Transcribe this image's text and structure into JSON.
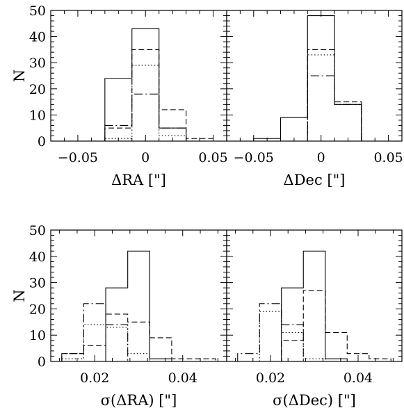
{
  "chart_data": [
    {
      "id": "top-left",
      "type": "histogram",
      "xlabel": "ΔRA [\"]",
      "ylabel": "N",
      "xlim": [
        -0.07,
        0.06
      ],
      "ylim": [
        0,
        50
      ],
      "xticks": [
        -0.05,
        0,
        0.05
      ],
      "xticklabels": [
        "−0.05",
        "0",
        "0.05"
      ],
      "yticks": [
        0,
        10,
        20,
        30,
        40,
        50
      ],
      "yticklabels": [
        "0",
        "10",
        "20",
        "30",
        "40",
        "50"
      ],
      "bin_edges": [
        -0.03,
        -0.01,
        0.01,
        0.03,
        0.05
      ],
      "series": [
        {
          "style": "solid",
          "values": [
            24,
            43,
            5,
            0
          ]
        },
        {
          "style": "dashed",
          "values": [
            5,
            35,
            12,
            1
          ]
        },
        {
          "style": "dotted",
          "values": [
            1,
            29,
            2,
            0
          ]
        },
        {
          "style": "dashdot",
          "values": [
            6,
            18,
            5,
            0
          ]
        }
      ]
    },
    {
      "id": "top-right",
      "type": "histogram",
      "xlabel": "ΔDec [\"]",
      "ylabel": "",
      "xlim": [
        -0.07,
        0.06
      ],
      "ylim": [
        0,
        50
      ],
      "xticks": [
        -0.05,
        0,
        0.05
      ],
      "xticklabels": [
        "−0.05",
        "0",
        "0.05"
      ],
      "yticks": [
        0,
        10,
        20,
        30,
        40,
        50
      ],
      "yticklabels": [],
      "bin_edges": [
        -0.05,
        -0.03,
        -0.01,
        0.01,
        0.03
      ],
      "series": [
        {
          "style": "solid",
          "values": [
            1,
            9,
            48,
            14
          ]
        },
        {
          "style": "dashed",
          "values": [
            0,
            0,
            35,
            15
          ]
        },
        {
          "style": "dotted",
          "values": [
            0,
            0,
            33,
            14
          ]
        },
        {
          "style": "dashdot",
          "values": [
            0,
            0,
            25,
            14
          ]
        }
      ]
    },
    {
      "id": "bottom-left",
      "type": "histogram",
      "xlabel": "σ(ΔRA) [\"]",
      "ylabel": "N",
      "xlim": [
        0.01,
        0.05
      ],
      "ylim": [
        0,
        50
      ],
      "xticks": [
        0.02,
        0.04
      ],
      "xticklabels": [
        "0.02",
        "0.04"
      ],
      "yticks": [
        0,
        10,
        20,
        30,
        40,
        50
      ],
      "yticklabels": [
        "0",
        "10",
        "20",
        "30",
        "40",
        "50"
      ],
      "bin_edges": [
        0.0125,
        0.0175,
        0.0225,
        0.0275,
        0.0325,
        0.0375,
        0.0425,
        0.0475
      ],
      "series": [
        {
          "style": "solid",
          "values": [
            0,
            0,
            28,
            42,
            1,
            0,
            0
          ]
        },
        {
          "style": "dashed",
          "values": [
            3,
            6,
            18,
            15,
            9,
            1,
            1
          ]
        },
        {
          "style": "dotted",
          "values": [
            1,
            14,
            13,
            3,
            0,
            0,
            0
          ]
        },
        {
          "style": "dashdot",
          "values": [
            3,
            22,
            14,
            0,
            0,
            0,
            0
          ]
        }
      ]
    },
    {
      "id": "bottom-right",
      "type": "histogram",
      "xlabel": "σ(ΔDec) [\"]",
      "ylabel": "",
      "xlim": [
        0.01,
        0.05
      ],
      "ylim": [
        0,
        50
      ],
      "xticks": [
        0.02,
        0.04
      ],
      "xticklabels": [
        "0.02",
        "0.04"
      ],
      "yticks": [
        0,
        10,
        20,
        30,
        40,
        50
      ],
      "yticklabels": [],
      "bin_edges": [
        0.0125,
        0.0175,
        0.0225,
        0.0275,
        0.0325,
        0.0375,
        0.0425,
        0.0475
      ],
      "series": [
        {
          "style": "solid",
          "values": [
            0,
            0,
            28,
            42,
            1,
            0,
            0
          ]
        },
        {
          "style": "dashed",
          "values": [
            0,
            0,
            8,
            27,
            11,
            3,
            1
          ]
        },
        {
          "style": "dotted",
          "values": [
            0,
            19,
            11,
            1,
            0,
            0,
            0
          ]
        },
        {
          "style": "dashdot",
          "values": [
            3,
            22,
            14,
            0,
            0,
            0,
            0
          ]
        }
      ]
    }
  ]
}
